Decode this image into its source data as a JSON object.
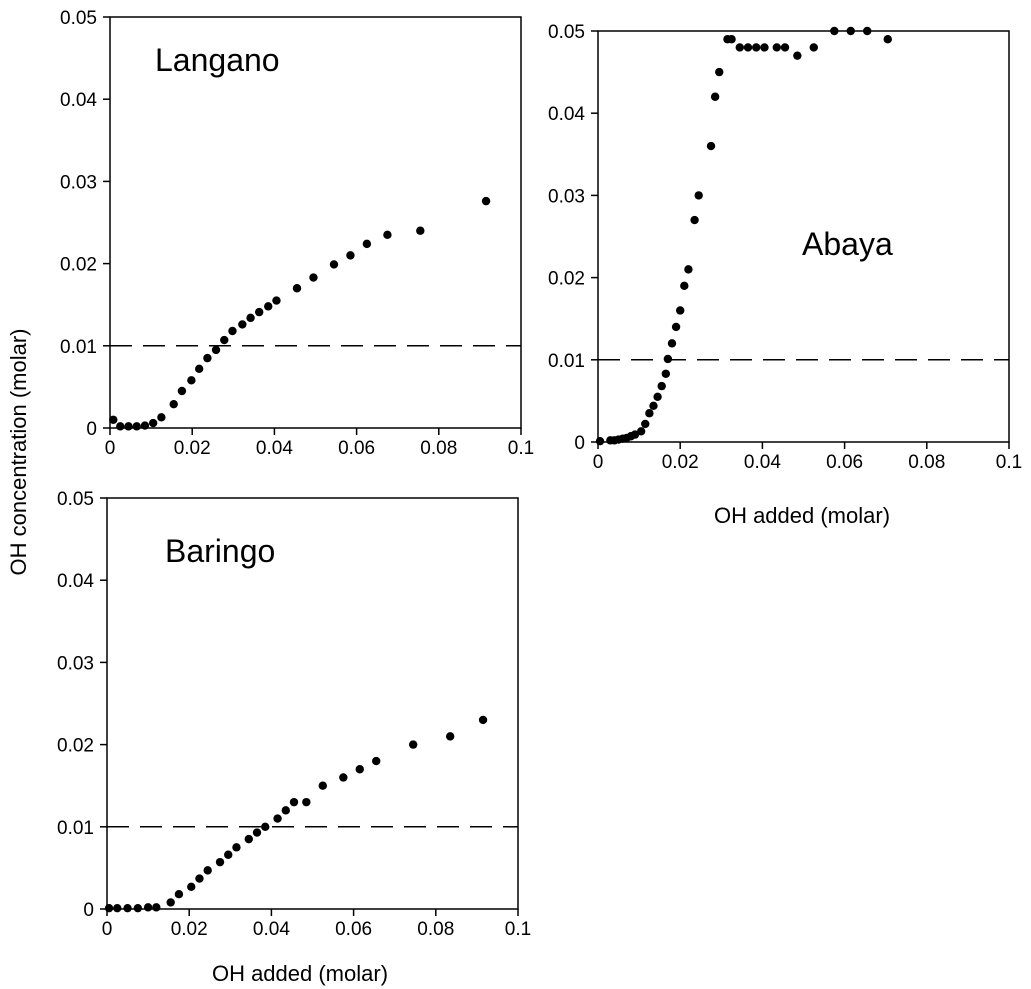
{
  "chart_data": [
    {
      "type": "scatter",
      "title": "Langano",
      "xlabel": "",
      "ylabel": "",
      "xlim": [
        0,
        0.1
      ],
      "ylim": [
        0,
        0.05
      ],
      "xticks": [
        "0",
        "0.02",
        "0.04",
        "0.06",
        "0.08",
        "0.1"
      ],
      "yticks": [
        "0",
        "0.01",
        "0.02",
        "0.03",
        "0.04",
        "0.05"
      ],
      "reference_line_y": 0.01,
      "grid": false,
      "points": [
        [
          0.0008,
          0.001
        ],
        [
          0.0025,
          0.0002
        ],
        [
          0.0045,
          0.0002
        ],
        [
          0.0065,
          0.0002
        ],
        [
          0.0085,
          0.0003
        ],
        [
          0.0105,
          0.0006
        ],
        [
          0.0125,
          0.0013
        ],
        [
          0.0155,
          0.0029
        ],
        [
          0.0175,
          0.0045
        ],
        [
          0.0198,
          0.0058
        ],
        [
          0.0217,
          0.0072
        ],
        [
          0.0237,
          0.0085
        ],
        [
          0.0258,
          0.0095
        ],
        [
          0.0278,
          0.0107
        ],
        [
          0.0298,
          0.0118
        ],
        [
          0.0322,
          0.0126
        ],
        [
          0.0342,
          0.0134
        ],
        [
          0.0363,
          0.0141
        ],
        [
          0.0385,
          0.0148
        ],
        [
          0.0405,
          0.0155
        ],
        [
          0.0455,
          0.017
        ],
        [
          0.0495,
          0.0183
        ],
        [
          0.0545,
          0.0199
        ],
        [
          0.0585,
          0.021
        ],
        [
          0.0625,
          0.0224
        ],
        [
          0.0675,
          0.0235
        ],
        [
          0.0755,
          0.024
        ],
        [
          0.0915,
          0.0276
        ]
      ]
    },
    {
      "type": "scatter",
      "title": "Abaya",
      "xlabel": "OH added (molar)",
      "ylabel": "",
      "xlim": [
        0,
        0.1
      ],
      "ylim": [
        0,
        0.05
      ],
      "xticks": [
        "0",
        "0.02",
        "0.04",
        "0.06",
        "0.08",
        "0.1"
      ],
      "yticks": [
        "0",
        "0.01",
        "0.02",
        "0.03",
        "0.04",
        "0.05"
      ],
      "reference_line_y": 0.01,
      "grid": false,
      "points": [
        [
          0.0005,
          0.0001
        ],
        [
          0.003,
          0.0002
        ],
        [
          0.004,
          0.0002
        ],
        [
          0.005,
          0.0003
        ],
        [
          0.006,
          0.0004
        ],
        [
          0.007,
          0.0005
        ],
        [
          0.008,
          0.0007
        ],
        [
          0.009,
          0.0009
        ],
        [
          0.0105,
          0.0013
        ],
        [
          0.0115,
          0.0022
        ],
        [
          0.0125,
          0.0035
        ],
        [
          0.0135,
          0.0044
        ],
        [
          0.0145,
          0.0055
        ],
        [
          0.0155,
          0.0068
        ],
        [
          0.0165,
          0.0083
        ],
        [
          0.017,
          0.0101
        ],
        [
          0.018,
          0.012
        ],
        [
          0.019,
          0.014
        ],
        [
          0.02,
          0.016
        ],
        [
          0.021,
          0.019
        ],
        [
          0.022,
          0.021
        ],
        [
          0.0235,
          0.027
        ],
        [
          0.0245,
          0.03
        ],
        [
          0.0275,
          0.036
        ],
        [
          0.0285,
          0.042
        ],
        [
          0.0295,
          0.045
        ],
        [
          0.0315,
          0.049
        ],
        [
          0.0325,
          0.049
        ],
        [
          0.0345,
          0.048
        ],
        [
          0.0365,
          0.048
        ],
        [
          0.0385,
          0.048
        ],
        [
          0.0405,
          0.048
        ],
        [
          0.0435,
          0.048
        ],
        [
          0.0455,
          0.048
        ],
        [
          0.0485,
          0.047
        ],
        [
          0.0525,
          0.048
        ],
        [
          0.0575,
          0.05
        ],
        [
          0.0615,
          0.05
        ],
        [
          0.0655,
          0.05
        ],
        [
          0.0705,
          0.049
        ]
      ]
    },
    {
      "type": "scatter",
      "title": "Baringo",
      "xlabel": "OH added (molar)",
      "ylabel": "",
      "xlim": [
        0,
        0.1
      ],
      "ylim": [
        0,
        0.05
      ],
      "xticks": [
        "0",
        "0.02",
        "0.04",
        "0.06",
        "0.08",
        "0.1"
      ],
      "yticks": [
        "0",
        "0.01",
        "0.02",
        "0.03",
        "0.04",
        "0.05"
      ],
      "reference_line_y": 0.01,
      "grid": false,
      "points": [
        [
          0.0005,
          0.0001
        ],
        [
          0.0025,
          0.0001
        ],
        [
          0.005,
          0.0001
        ],
        [
          0.0075,
          0.0001
        ],
        [
          0.01,
          0.0002
        ],
        [
          0.012,
          0.0002
        ],
        [
          0.0155,
          0.0008
        ],
        [
          0.0175,
          0.0018
        ],
        [
          0.0205,
          0.0027
        ],
        [
          0.0225,
          0.0037
        ],
        [
          0.0245,
          0.0047
        ],
        [
          0.0275,
          0.0057
        ],
        [
          0.0295,
          0.0066
        ],
        [
          0.0315,
          0.0075
        ],
        [
          0.0345,
          0.0085
        ],
        [
          0.0365,
          0.0093
        ],
        [
          0.0385,
          0.01
        ],
        [
          0.0415,
          0.011
        ],
        [
          0.0435,
          0.012
        ],
        [
          0.0455,
          0.013
        ],
        [
          0.0485,
          0.013
        ],
        [
          0.0525,
          0.015
        ],
        [
          0.0575,
          0.016
        ],
        [
          0.0615,
          0.017
        ],
        [
          0.0655,
          0.018
        ],
        [
          0.0745,
          0.02
        ],
        [
          0.0835,
          0.021
        ],
        [
          0.0915,
          0.023
        ]
      ]
    }
  ],
  "shared": {
    "ylabel": "OH concentration (molar)"
  }
}
